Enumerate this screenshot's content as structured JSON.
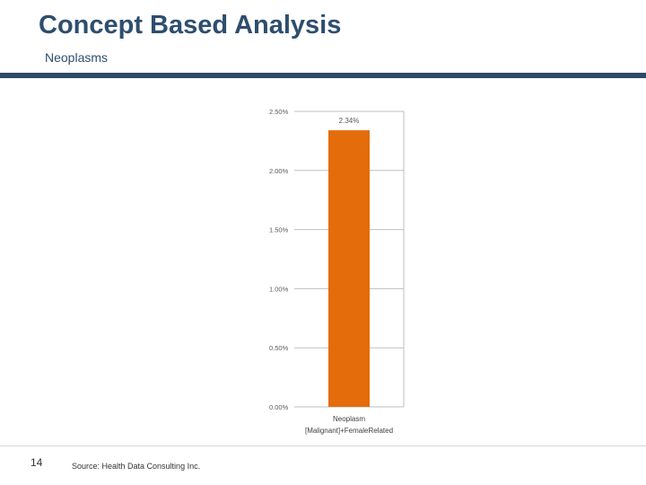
{
  "slide": {
    "title": "Concept Based Analysis",
    "subtitle": "Neoplasms",
    "page_number": "14",
    "source": "Source: Health Data Consulting Inc."
  },
  "colors": {
    "accent": "#2e4a66",
    "title": "#2e4e6e",
    "bar": "#e46c0a"
  },
  "chart_data": {
    "type": "bar",
    "categories": [
      "Neoplasm [Malignant]+FemaleRelated"
    ],
    "category_label_lines": [
      [
        "Neoplasm",
        "[Malignant]+FemaleRelated"
      ]
    ],
    "values": [
      2.34
    ],
    "data_labels": [
      "2.34%"
    ],
    "ylim": [
      0,
      2.5
    ],
    "y_ticks": [
      0,
      0.5,
      1.0,
      1.5,
      2.0,
      2.5
    ],
    "y_tick_labels": [
      "0.00%",
      "0.50%",
      "1.00%",
      "1.50%",
      "2.00%",
      "2.50%"
    ],
    "grid": true,
    "legend": "none",
    "title": "",
    "xlabel": "",
    "ylabel": ""
  }
}
